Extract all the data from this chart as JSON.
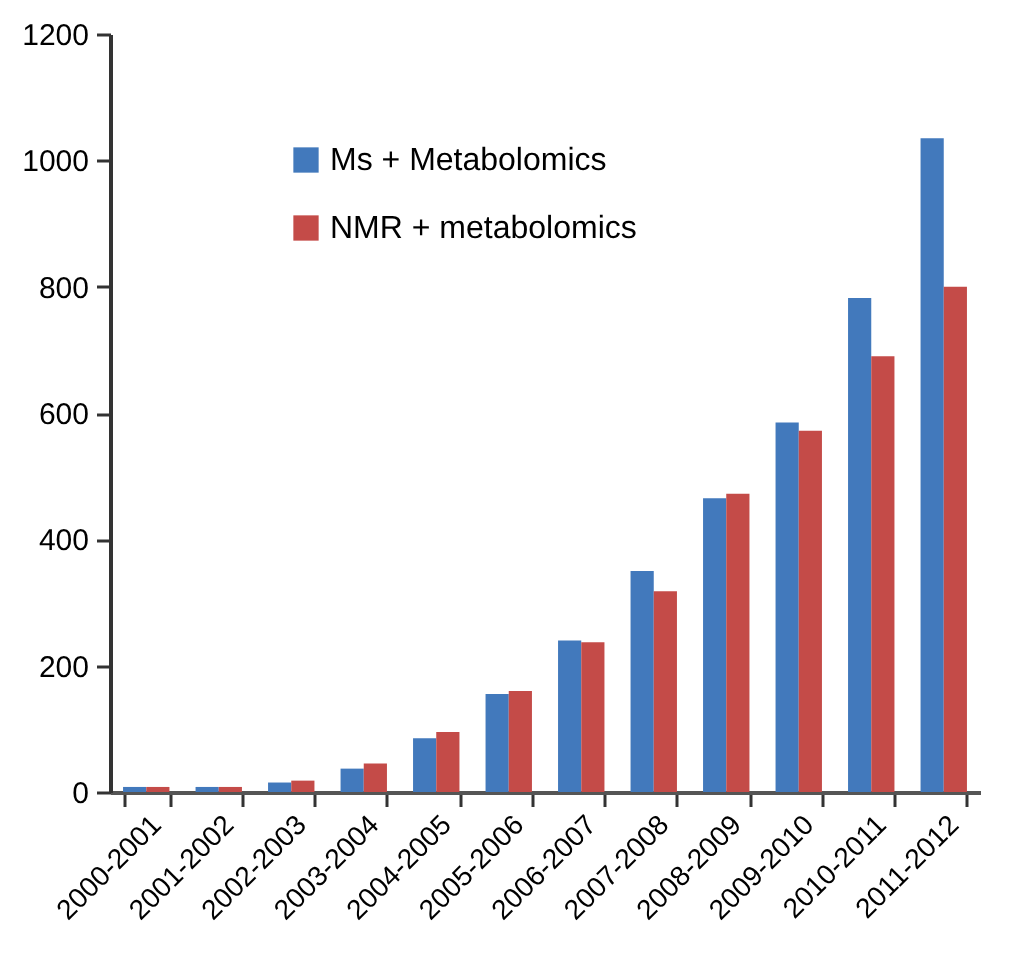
{
  "chart_data": {
    "type": "bar",
    "categories": [
      "2000-2001",
      "2001-2002",
      "2002-2003",
      "2003-2004",
      "2004-2005",
      "2005-2006",
      "2006-2007",
      "2007-2008",
      "2008-2009",
      "2009-2010",
      "2010-2011",
      "2011-2012"
    ],
    "series": [
      {
        "name": "Ms + Metabolomics",
        "color": "#4279bc",
        "values": [
          8,
          8,
          15,
          37,
          85,
          155,
          240,
          350,
          465,
          585,
          782,
          1035
        ]
      },
      {
        "name": "NMR + metabolomics",
        "color": "#c44b48",
        "values": [
          8,
          8,
          18,
          45,
          95,
          160,
          237,
          318,
          472,
          572,
          690,
          800
        ]
      }
    ],
    "ylim": [
      0,
      1200
    ],
    "yticks": [
      0,
      200,
      400,
      600,
      800,
      1000,
      1200
    ],
    "grid": false,
    "legend": "top left"
  }
}
